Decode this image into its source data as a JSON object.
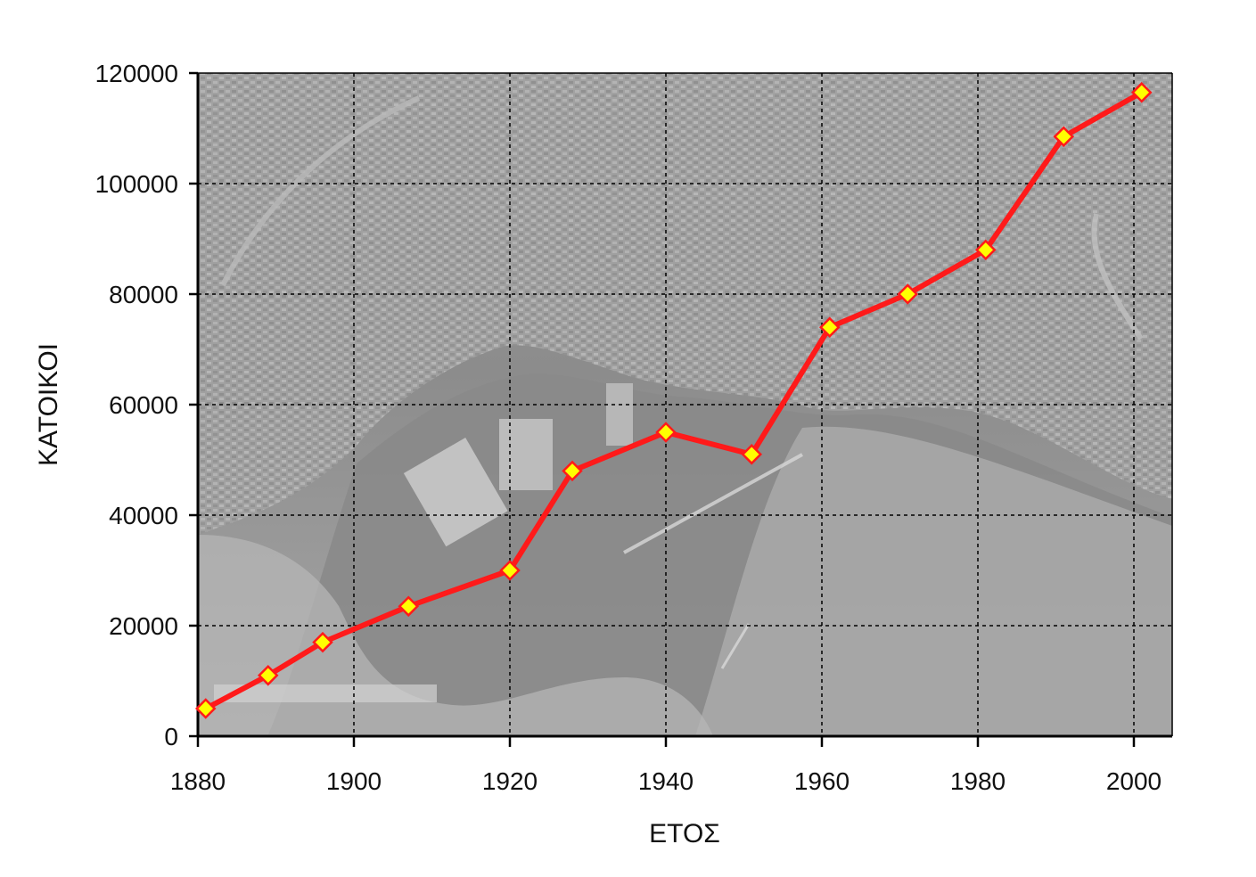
{
  "chart_data": {
    "type": "line",
    "title": "",
    "xlabel": "ΕΤΟΣ",
    "ylabel": "ΚΑΤΟΙΚΟΙ",
    "xlim": [
      1880,
      2005
    ],
    "ylim": [
      0,
      120000
    ],
    "xticks": [
      1880,
      1900,
      1920,
      1940,
      1960,
      1980,
      2000
    ],
    "yticks": [
      0,
      20000,
      40000,
      60000,
      80000,
      100000,
      120000
    ],
    "grid": true,
    "background": "aerial photograph (greyscale)",
    "series": [
      {
        "x": [
          1881,
          1889,
          1896,
          1907,
          1920,
          1928,
          1940,
          1951,
          1961,
          1971,
          1981,
          1991,
          2001
        ],
        "y": [
          5000,
          11000,
          17000,
          23500,
          30000,
          48000,
          55000,
          51000,
          74000,
          80000,
          88000,
          108500,
          116500
        ],
        "color": "#ff1a1a",
        "marker": "diamond",
        "marker_fill": "#ffff00",
        "marker_stroke": "#ff1a1a"
      }
    ]
  }
}
